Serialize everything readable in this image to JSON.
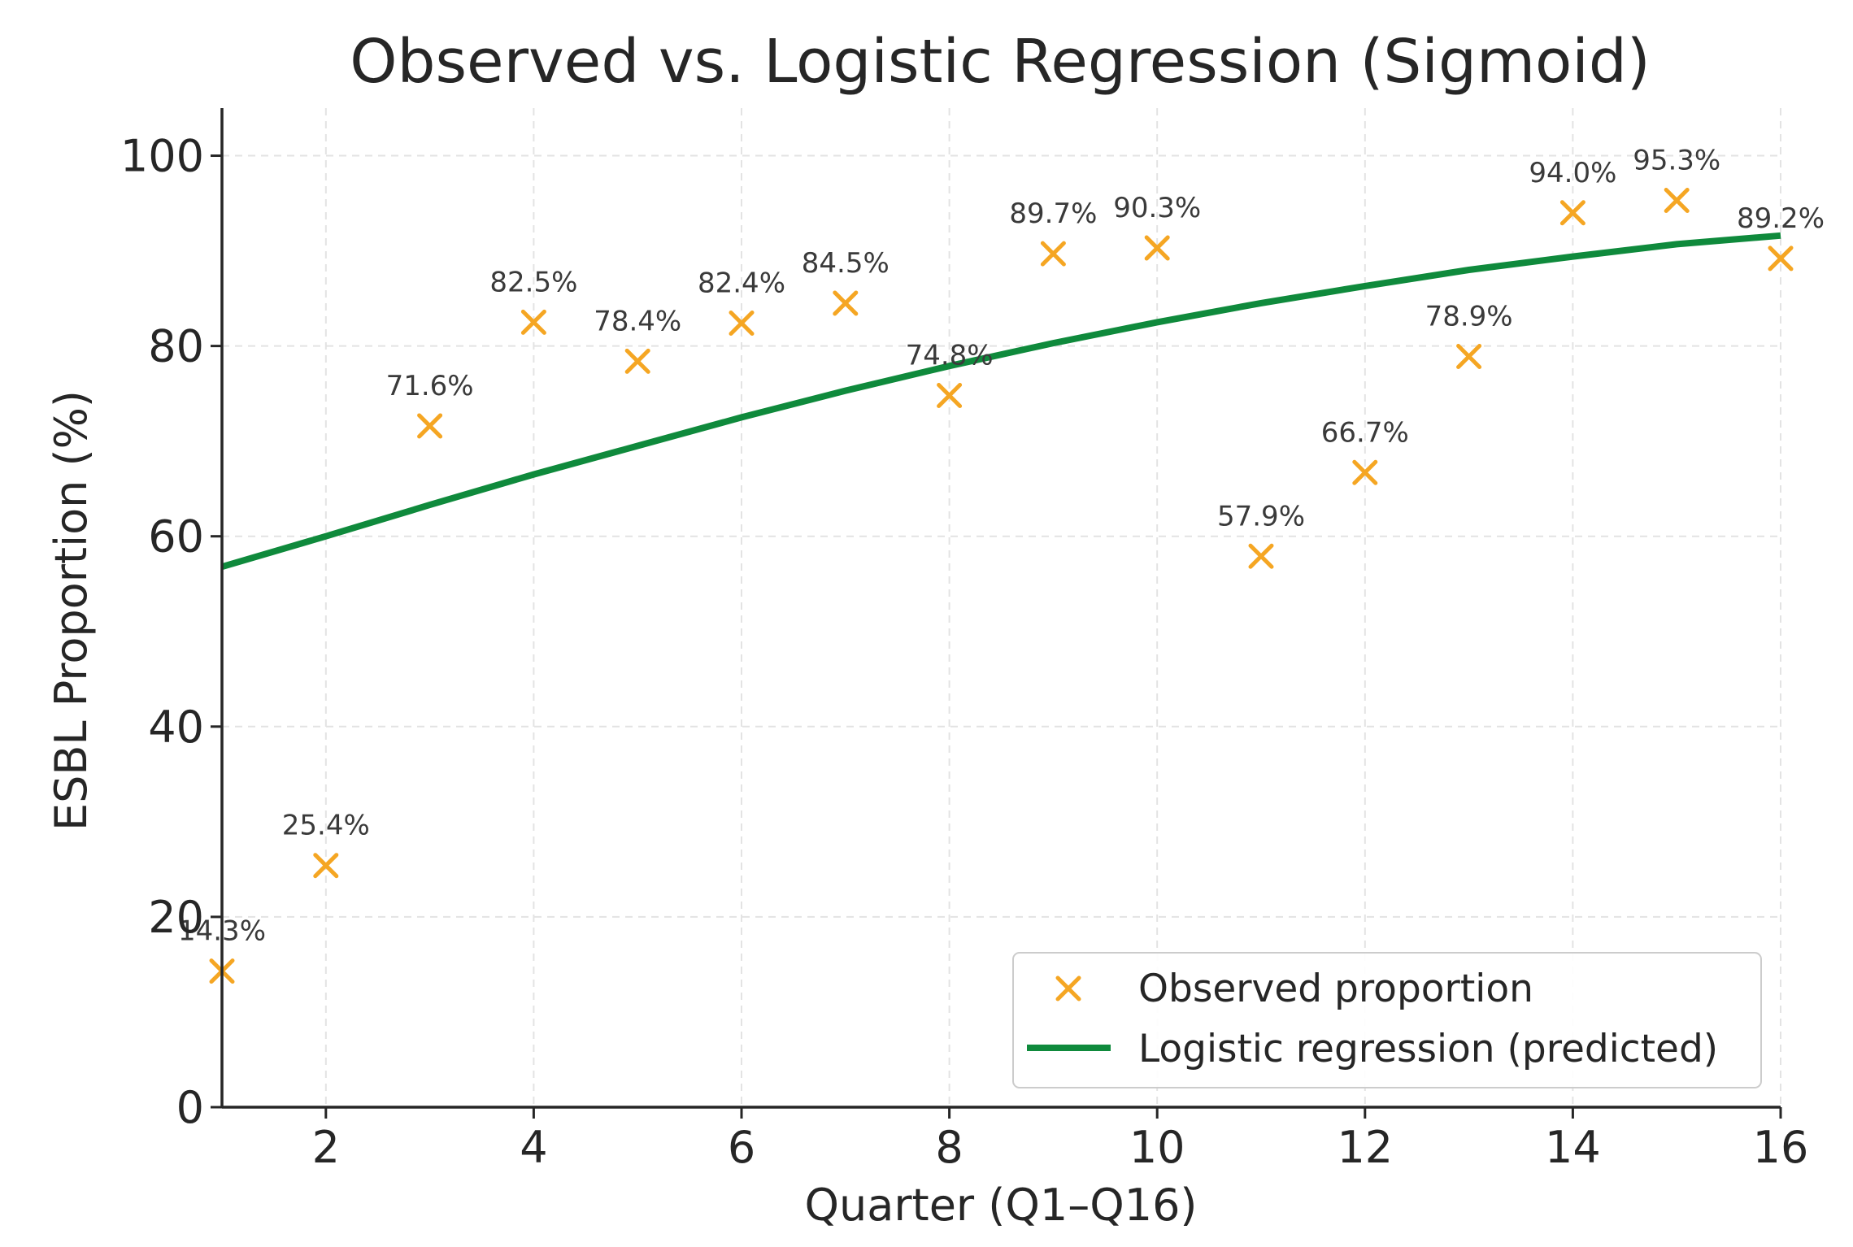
{
  "chart_data": {
    "type": "scatter",
    "title": "Observed vs. Logistic Regression (Sigmoid)",
    "xlabel": "Quarter (Q1–Q16)",
    "ylabel": "ESBL Proportion (%)",
    "xlim": [
      1,
      16
    ],
    "ylim": [
      0,
      105
    ],
    "xticks": [
      2,
      4,
      6,
      8,
      10,
      12,
      14,
      16
    ],
    "yticks": [
      0,
      20,
      40,
      60,
      80,
      100
    ],
    "grid": true,
    "legend_position": "lower-right",
    "series": [
      {
        "name": "Observed proportion",
        "kind": "scatter",
        "marker": "x",
        "color": "#f5a623",
        "x": [
          1,
          2,
          3,
          4,
          5,
          6,
          7,
          8,
          9,
          10,
          11,
          12,
          13,
          14,
          15,
          16
        ],
        "y": [
          14.3,
          25.4,
          71.6,
          82.5,
          78.4,
          82.4,
          84.5,
          74.8,
          89.7,
          90.3,
          57.9,
          66.7,
          78.9,
          94.0,
          95.3,
          89.2
        ],
        "labels": [
          "14.3%",
          "25.4%",
          "71.6%",
          "82.5%",
          "78.4%",
          "82.4%",
          "84.5%",
          "74.8%",
          "89.7%",
          "90.3%",
          "57.9%",
          "66.7%",
          "78.9%",
          "94.0%",
          "95.3%",
          "89.2%"
        ]
      },
      {
        "name": "Logistic regression (predicted)",
        "kind": "line",
        "color": "#0f8a3c",
        "x": [
          1,
          2,
          3,
          4,
          5,
          6,
          7,
          8,
          9,
          10,
          11,
          12,
          13,
          14,
          15,
          16
        ],
        "y": [
          56.8,
          60.0,
          63.3,
          66.5,
          69.5,
          72.5,
          75.3,
          77.9,
          80.3,
          82.5,
          84.5,
          86.3,
          88.0,
          89.4,
          90.7,
          91.6
        ]
      }
    ]
  }
}
